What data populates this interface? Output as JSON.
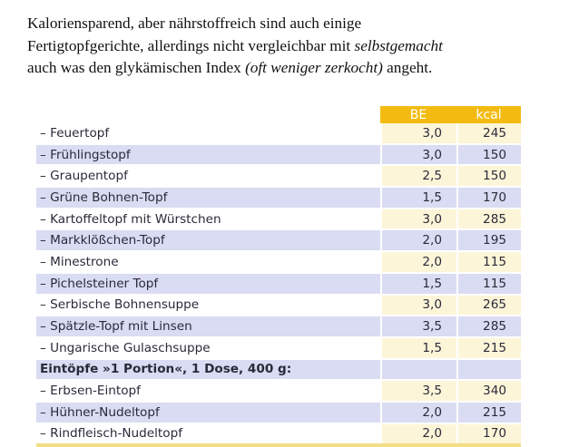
{
  "intro": {
    "line1": "Kaloriensparend, aber nährstoffreich sind auch einige",
    "line2_plain": "Fertigtopfgerichte, allerdings nicht vergleichbar mit ",
    "line2_italic": "selbstgemacht",
    "line3_plain_a": "auch was den glykämischen Index ",
    "line3_italic": "(oft weniger zerkocht)",
    "line3_plain_b": " angeht."
  },
  "table": {
    "headers": [
      "",
      "BE",
      "kcal"
    ],
    "rows": [
      {
        "name": "– Feuertopf",
        "be": "3,0",
        "kcal": "245"
      },
      {
        "name": "– Frühlingstopf",
        "be": "3,0",
        "kcal": "150"
      },
      {
        "name": "– Graupentopf",
        "be": "2,5",
        "kcal": "150"
      },
      {
        "name": "– Grüne Bohnen-Topf",
        "be": "1,5",
        "kcal": "170"
      },
      {
        "name": "– Kartoffeltopf mit Würstchen",
        "be": "3,0",
        "kcal": "285"
      },
      {
        "name": "– Markklößchen-Topf",
        "be": "2,0",
        "kcal": "195"
      },
      {
        "name": "– Minestrone",
        "be": "2,0",
        "kcal": "115"
      },
      {
        "name": "– Pichelsteiner Topf",
        "be": "1,5",
        "kcal": "115"
      },
      {
        "name": "– Serbische Bohnensuppe",
        "be": "3,0",
        "kcal": "265"
      },
      {
        "name": "– Spätzle-Topf mit Linsen",
        "be": "3,5",
        "kcal": "285"
      },
      {
        "name": "– Ungarische Gulaschsuppe",
        "be": "1,5",
        "kcal": "215"
      },
      {
        "section": "Eintöpfe »1 Portion«, 1 Dose, 400 g:"
      },
      {
        "name": "– Erbsen-Eintopf",
        "be": "3,5",
        "kcal": "340"
      },
      {
        "name": "– Hühner-Nudeltopf",
        "be": "2,0",
        "kcal": "215"
      },
      {
        "name": "– Rindfleisch-Nudeltopf",
        "be": "2,0",
        "kcal": "170"
      }
    ]
  }
}
